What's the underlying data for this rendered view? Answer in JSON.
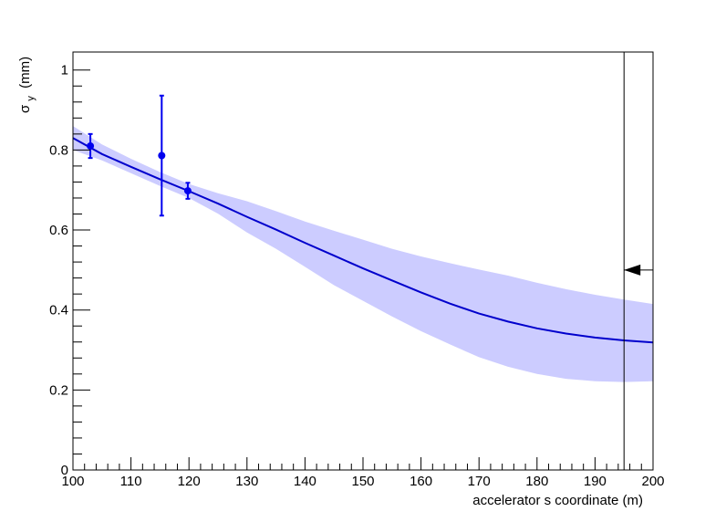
{
  "chart_data": {
    "type": "line",
    "title": "",
    "xlabel": "accelerator s coordinate (m)",
    "ylabel": {
      "main": "σ",
      "subscript": "y",
      "unit": "(mm)"
    },
    "xlim": [
      100,
      200
    ],
    "ylim": [
      0,
      1.045
    ],
    "x_ticks": [
      100,
      110,
      120,
      130,
      140,
      150,
      160,
      170,
      180,
      190,
      200
    ],
    "y_ticks": [
      0,
      0.2,
      0.4,
      0.6,
      0.8,
      1
    ],
    "x_tick_labels": [
      "100",
      "110",
      "120",
      "130",
      "140",
      "150",
      "160",
      "170",
      "180",
      "190",
      "200"
    ],
    "y_tick_labels": [
      "0",
      "0.2",
      "0.4",
      "0.6",
      "0.8",
      "1"
    ],
    "grid": false,
    "colors": {
      "line": "#0000cc",
      "band": "#ccccff",
      "points": "#0000ee",
      "frame": "#000000"
    },
    "measurements": {
      "x": [
        103,
        115.3,
        119.8
      ],
      "y": [
        0.81,
        0.786,
        0.698
      ],
      "yerr": [
        0.03,
        0.15,
        0.02
      ]
    },
    "fit_curve": {
      "x": [
        100,
        105,
        110,
        115,
        120,
        125,
        130,
        135,
        140,
        145,
        150,
        155,
        160,
        165,
        170,
        175,
        180,
        185,
        190,
        195,
        200
      ],
      "y": [
        0.83,
        0.79,
        0.758,
        0.727,
        0.697,
        0.666,
        0.633,
        0.601,
        0.568,
        0.536,
        0.504,
        0.474,
        0.444,
        0.416,
        0.391,
        0.371,
        0.354,
        0.341,
        0.331,
        0.324,
        0.319
      ]
    },
    "confidence_band": {
      "x": [
        100,
        105,
        110,
        115,
        120,
        125,
        130,
        135,
        140,
        145,
        150,
        155,
        160,
        165,
        170,
        175,
        180,
        185,
        190,
        195,
        200
      ],
      "upper": [
        0.86,
        0.814,
        0.778,
        0.745,
        0.715,
        0.692,
        0.672,
        0.647,
        0.621,
        0.598,
        0.576,
        0.553,
        0.534,
        0.517,
        0.501,
        0.486,
        0.468,
        0.452,
        0.438,
        0.426,
        0.415
      ],
      "lower": [
        0.8,
        0.774,
        0.742,
        0.71,
        0.68,
        0.641,
        0.594,
        0.553,
        0.508,
        0.462,
        0.423,
        0.384,
        0.347,
        0.314,
        0.282,
        0.258,
        0.24,
        0.228,
        0.222,
        0.22,
        0.222
      ]
    },
    "marker_line": {
      "x": 195
    },
    "arrow": {
      "x_from": 200,
      "x_to": 195,
      "y": 0.5
    }
  }
}
